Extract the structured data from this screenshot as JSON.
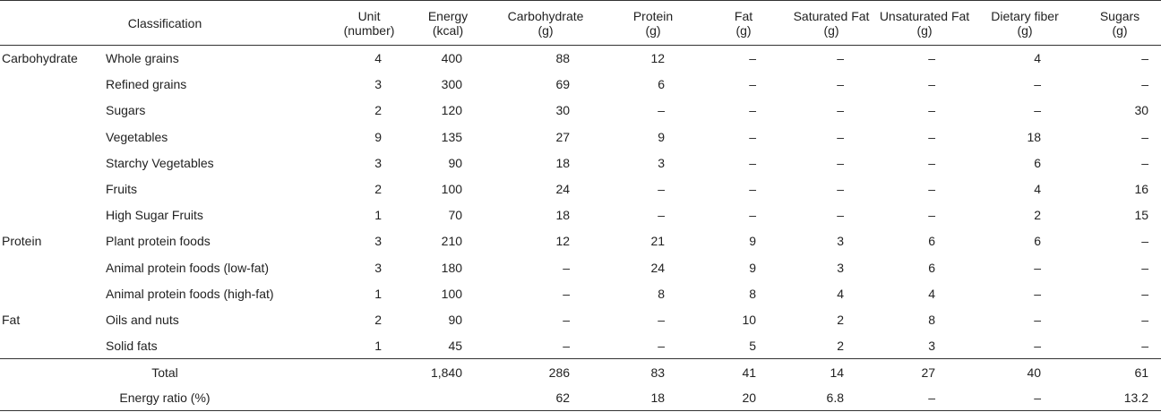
{
  "header": {
    "classification": "Classification",
    "unit": [
      "Unit",
      "(number)"
    ],
    "energy": [
      "Energy",
      "(kcal)"
    ],
    "carbohydrate": [
      "Carbohydrate",
      "(g)"
    ],
    "protein": [
      "Protein",
      "(g)"
    ],
    "fat": [
      "Fat",
      "(g)"
    ],
    "saturated_fat": [
      "Saturated Fat",
      "(g)"
    ],
    "unsaturated_fat": [
      "Unsaturated Fat",
      "(g)"
    ],
    "dietary_fiber": [
      "Dietary fiber",
      "(g)"
    ],
    "sugars": [
      "Sugars",
      "(g)"
    ]
  },
  "rows": [
    {
      "category": "Carbohydrate",
      "item": "Whole grains",
      "unit": "4",
      "energy": "400",
      "carb": "88",
      "protein": "12",
      "fat": "–",
      "sat": "–",
      "unsat": "–",
      "fiber": "4",
      "sugars": "–"
    },
    {
      "category": "",
      "item": "Refined grains",
      "unit": "3",
      "energy": "300",
      "carb": "69",
      "protein": "6",
      "fat": "–",
      "sat": "–",
      "unsat": "–",
      "fiber": "–",
      "sugars": "–"
    },
    {
      "category": "",
      "item": "Sugars",
      "unit": "2",
      "energy": "120",
      "carb": "30",
      "protein": "–",
      "fat": "–",
      "sat": "–",
      "unsat": "–",
      "fiber": "–",
      "sugars": "30"
    },
    {
      "category": "",
      "item": "Vegetables",
      "unit": "9",
      "energy": "135",
      "carb": "27",
      "protein": "9",
      "fat": "–",
      "sat": "–",
      "unsat": "–",
      "fiber": "18",
      "sugars": "–"
    },
    {
      "category": "",
      "item": "Starchy Vegetables",
      "unit": "3",
      "energy": "90",
      "carb": "18",
      "protein": "3",
      "fat": "–",
      "sat": "–",
      "unsat": "–",
      "fiber": "6",
      "sugars": "–"
    },
    {
      "category": "",
      "item": "Fruits",
      "unit": "2",
      "energy": "100",
      "carb": "24",
      "protein": "–",
      "fat": "–",
      "sat": "–",
      "unsat": "–",
      "fiber": "4",
      "sugars": "16"
    },
    {
      "category": "",
      "item": "High Sugar Fruits",
      "unit": "1",
      "energy": "70",
      "carb": "18",
      "protein": "–",
      "fat": "–",
      "sat": "–",
      "unsat": "–",
      "fiber": "2",
      "sugars": "15"
    },
    {
      "category": "Protein",
      "item": "Plant protein foods",
      "unit": "3",
      "energy": "210",
      "carb": "12",
      "protein": "21",
      "fat": "9",
      "sat": "3",
      "unsat": "6",
      "fiber": "6",
      "sugars": "–"
    },
    {
      "category": "",
      "item": "Animal protein foods (low-fat)",
      "unit": "3",
      "energy": "180",
      "carb": "–",
      "protein": "24",
      "fat": "9",
      "sat": "3",
      "unsat": "6",
      "fiber": "–",
      "sugars": "–"
    },
    {
      "category": "",
      "item": "Animal protein foods (high-fat)",
      "unit": "1",
      "energy": "100",
      "carb": "–",
      "protein": "8",
      "fat": "8",
      "sat": "4",
      "unsat": "4",
      "fiber": "–",
      "sugars": "–"
    },
    {
      "category": "Fat",
      "item": "Oils and nuts",
      "unit": "2",
      "energy": "90",
      "carb": "–",
      "protein": "–",
      "fat": "10",
      "sat": "2",
      "unsat": "8",
      "fiber": "–",
      "sugars": "–"
    },
    {
      "category": "",
      "item": "Solid fats",
      "unit": "1",
      "energy": "45",
      "carb": "–",
      "protein": "–",
      "fat": "5",
      "sat": "2",
      "unsat": "3",
      "fiber": "–",
      "sugars": "–"
    }
  ],
  "footer": [
    {
      "label": "Total",
      "unit": "",
      "energy": "1,840",
      "carb": "286",
      "protein": "83",
      "fat": "41",
      "sat": "14",
      "unsat": "27",
      "fiber": "40",
      "sugars": "61"
    },
    {
      "label": "Energy ratio (%)",
      "unit": "",
      "energy": "",
      "carb": "62",
      "protein": "18",
      "fat": "20",
      "sat": "6.8",
      "unsat": "–",
      "fiber": "–",
      "sugars": "13.2"
    }
  ]
}
